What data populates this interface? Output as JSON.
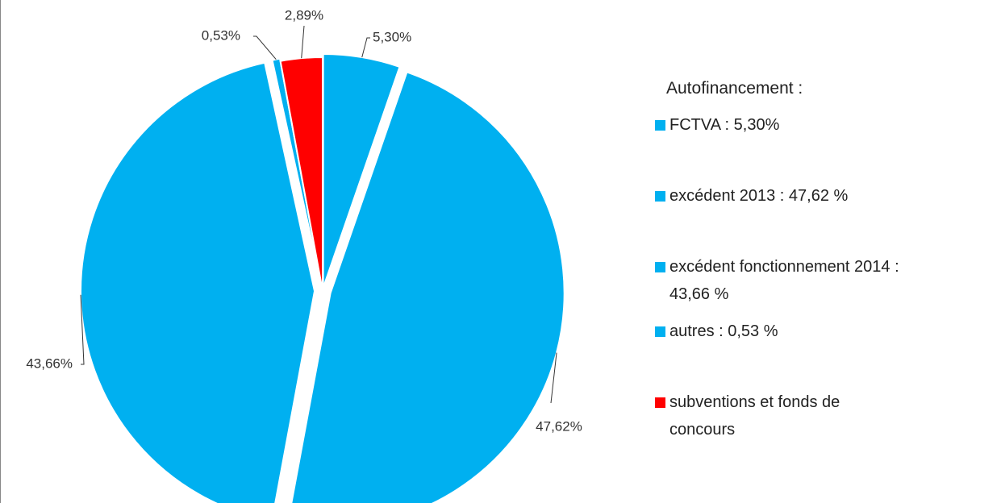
{
  "chart_data": {
    "type": "pie",
    "legend_title": "Autofinancement :",
    "categories": [
      "FCTVA : 5,30%",
      "excédent 2013 : 47,62 %",
      "excédent fonctionnement 2014 : 43,66 %",
      "autres : 0,53 %",
      "subventions et fonds de concours"
    ],
    "values": [
      5.3,
      47.62,
      43.66,
      0.53,
      2.89
    ],
    "value_labels": [
      "5,30%",
      "47,62%",
      "43,66%",
      "0,53%",
      "2,89%"
    ],
    "colors": [
      "#00b0f0",
      "#00b0f0",
      "#00b0f0",
      "#00b0f0",
      "#ff0000"
    ],
    "legend": "right"
  }
}
